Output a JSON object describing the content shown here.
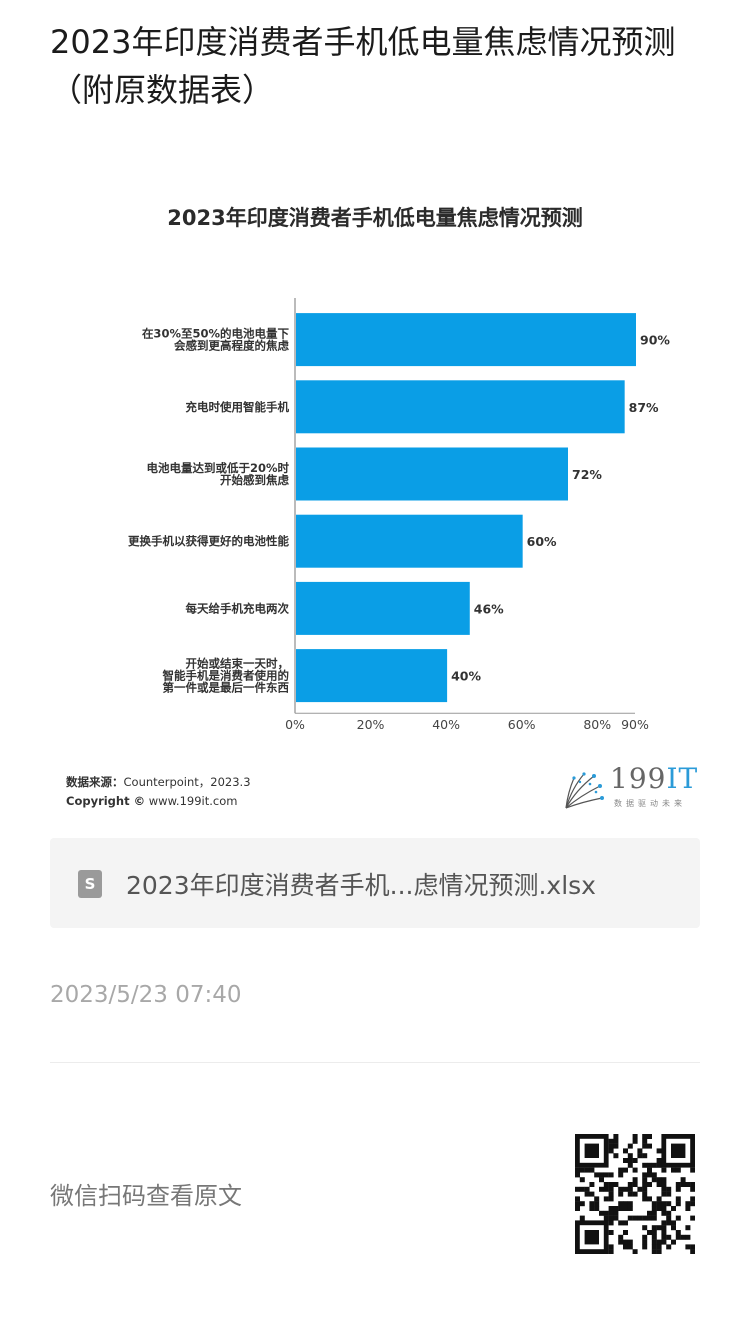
{
  "article": {
    "title": "2023年印度消费者手机低电量焦虑情况预测（附原数据表）"
  },
  "chart_data": {
    "type": "bar",
    "orientation": "horizontal",
    "title": "2023年印度消费者手机低电量焦虑情况预测",
    "categories": [
      [
        "在30%至50%的电池电量下",
        "会感到更高程度的焦虑"
      ],
      [
        "充电时使用智能手机"
      ],
      [
        "电池电量达到或低于20%时",
        "开始感到焦虑"
      ],
      [
        "更换手机以获得更好的电池性能"
      ],
      [
        "每天给手机充电两次"
      ],
      [
        "开始或结束一天时，",
        "智能手机是消费者使用的",
        "第一件或是最后一件东西"
      ]
    ],
    "values": [
      90,
      87,
      72,
      60,
      46,
      40
    ],
    "value_labels": [
      "90%",
      "87%",
      "72%",
      "60%",
      "46%",
      "40%"
    ],
    "xlim": [
      0,
      90
    ],
    "xticks": [
      0,
      20,
      40,
      60,
      80,
      90
    ],
    "xtick_labels": [
      "0%",
      "20%",
      "40%",
      "60%",
      "80%",
      "90%"
    ],
    "bar_color": "#0a9ee6",
    "grid": false,
    "legend": "none"
  },
  "chart_footer": {
    "source_label": "数据来源：",
    "source_value": "Counterpoint，2023.3",
    "copyright_label": "Copyright ©",
    "copyright_value": "www.199it.com",
    "logo_text_a": "199",
    "logo_text_b": "IT",
    "logo_slogan": "数据驱动未来"
  },
  "attachment": {
    "icon": "spreadsheet-file-icon",
    "icon_letter": "S",
    "file_name": "2023年印度消费者手机...虑情况预测.xlsx"
  },
  "timestamp": "2023/5/23 07:40",
  "qr": {
    "caption": "微信扫码查看原文",
    "icon": "qr-code-icon"
  }
}
